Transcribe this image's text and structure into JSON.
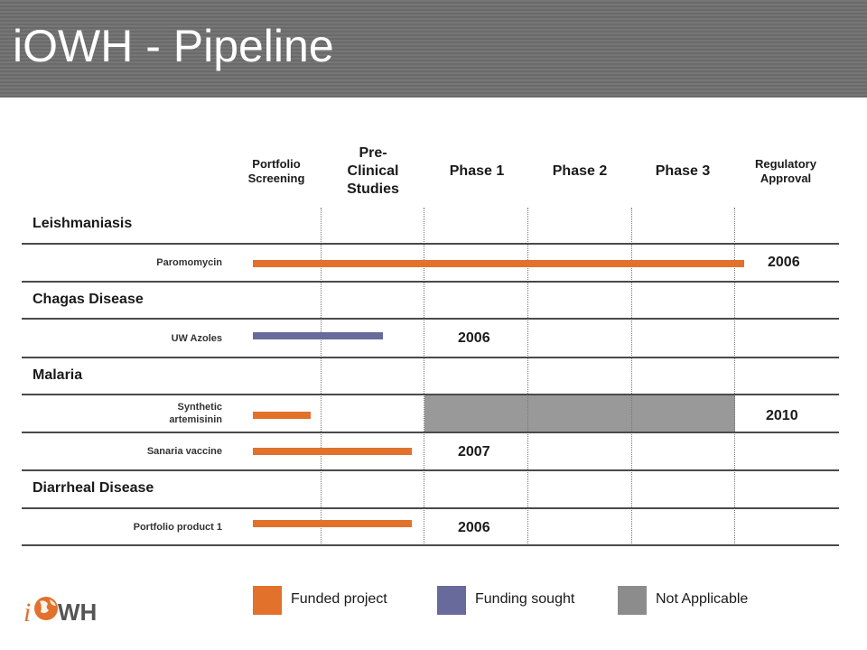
{
  "title": "iOWH - Pipeline",
  "columns": [
    {
      "label": "Portfolio Screening"
    },
    {
      "label": "Pre-Clinical Studies"
    },
    {
      "label": "Phase 1"
    },
    {
      "label": "Phase 2"
    },
    {
      "label": "Phase 3"
    },
    {
      "label": "Regulatory Approval"
    }
  ],
  "groups": [
    {
      "label": "Leishmaniasis"
    },
    {
      "label": "Chagas Disease"
    },
    {
      "label": "Malaria"
    },
    {
      "label": "Diarrheal Disease"
    }
  ],
  "rows": [
    {
      "label": "Paromomycin",
      "year": "2006",
      "status": "funded"
    },
    {
      "label": "UW Azoles",
      "year": "2006",
      "status": "funding-sought"
    },
    {
      "label": "Synthetic artemisinin",
      "year": "2010",
      "status": "funded"
    },
    {
      "label": "Sanaria vaccine",
      "year": "2007",
      "status": "funded"
    },
    {
      "label": "Portfolio product 1",
      "year": "2006",
      "status": "funded"
    }
  ],
  "legend": [
    {
      "label": "Funded project",
      "color": "#E2712B"
    },
    {
      "label": "Funding sought",
      "color": "#676A9B"
    },
    {
      "label": "Not Applicable",
      "color": "#8C8C8C"
    }
  ],
  "colors": {
    "funded": "#E2712B",
    "funding_sought": "#676A9B",
    "not_applicable": "#999999"
  },
  "logo": {
    "text": "iOWH",
    "icon": "globe-icon"
  }
}
